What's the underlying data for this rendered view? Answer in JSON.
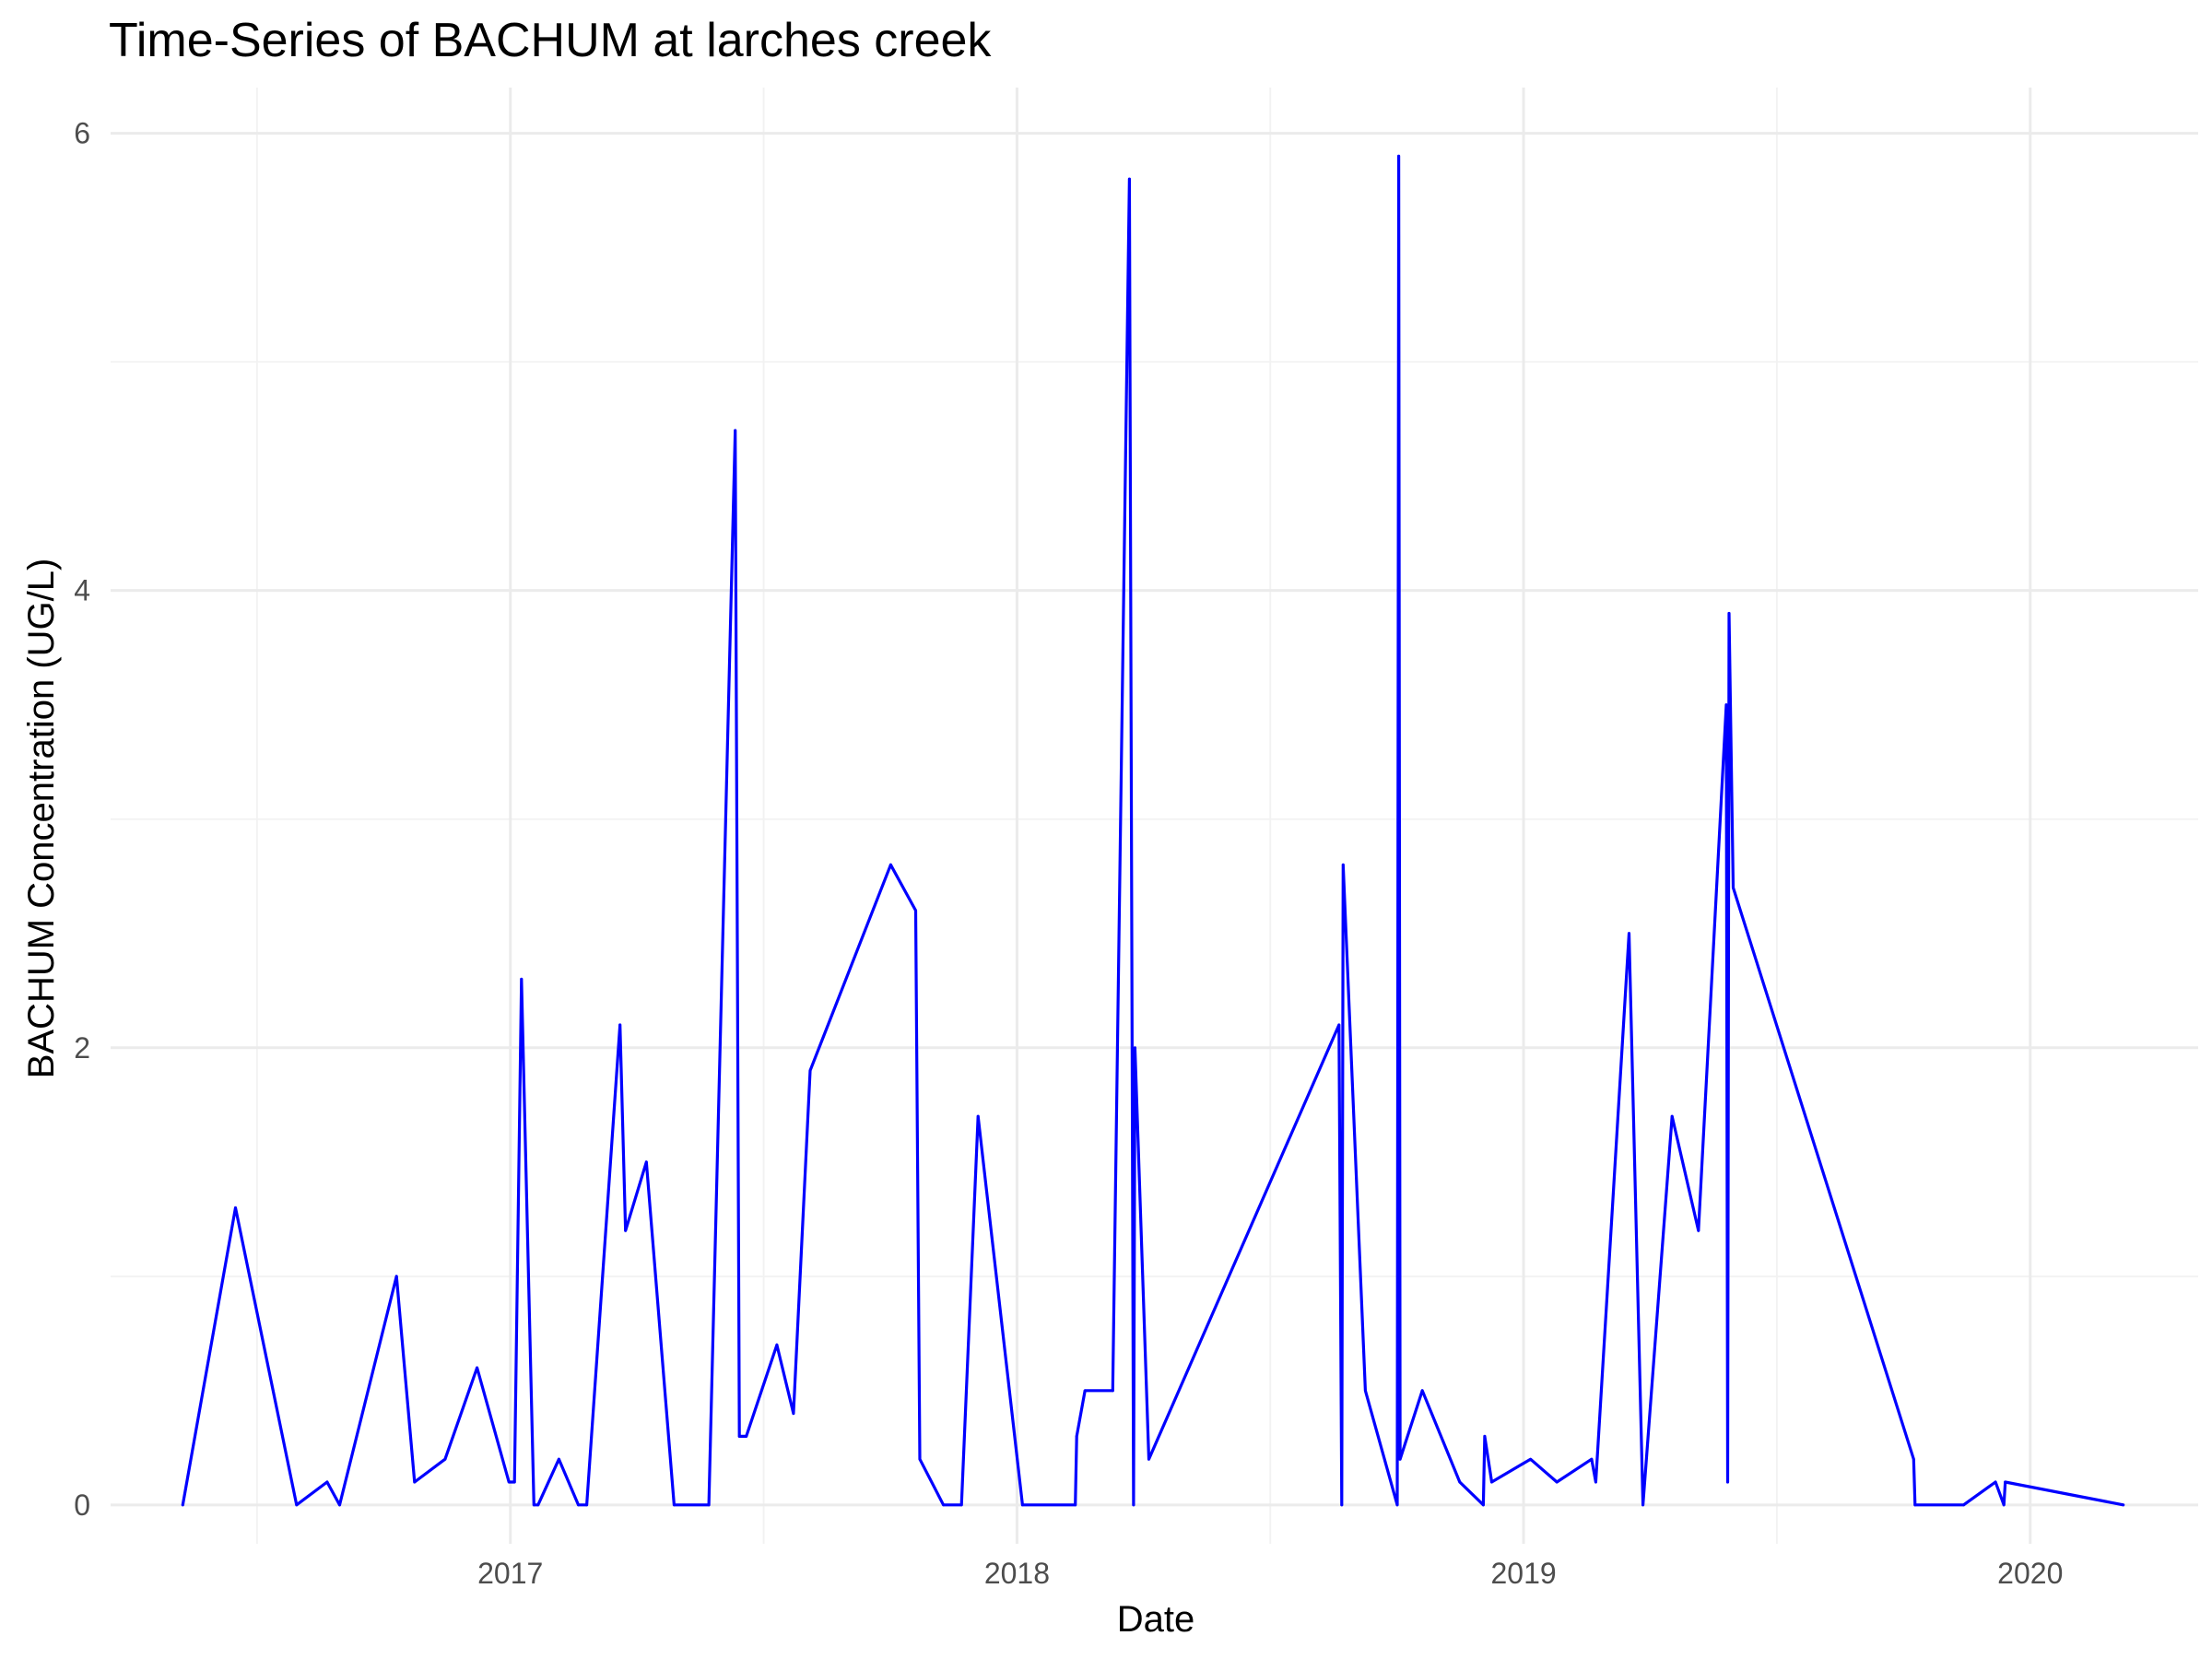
{
  "chart_data": {
    "type": "line",
    "title": "Time-Series of BACHUM at larches creek",
    "xlabel": "Date",
    "ylabel": "BACHUM Concentration (UG/L)",
    "xlim": [
      "2016-03-19",
      "2020-05-01"
    ],
    "ylim": [
      -0.17,
      6.2
    ],
    "x_ticks": [
      "2017-01-01",
      "2018-01-01",
      "2019-01-01",
      "2020-01-01"
    ],
    "x_tick_labels": [
      "2017",
      "2018",
      "2019",
      "2020"
    ],
    "y_ticks": [
      0,
      2,
      4,
      6
    ],
    "y_tick_labels": [
      "0",
      "2",
      "4",
      "6"
    ],
    "grid": true,
    "legend": "none",
    "line_color": "#0000ff",
    "series": [
      {
        "x": [
          "2016-05-10",
          "2016-06-17",
          "2016-07-31",
          "2016-08-22",
          "2016-08-31",
          "2016-10-11",
          "2016-10-24",
          "2016-11-15",
          "2016-12-08",
          "2016-12-31",
          "2017-01-04",
          "2017-01-09",
          "2017-01-18",
          "2017-01-21",
          "2017-02-05",
          "2017-02-19",
          "2017-02-25",
          "2017-03-21",
          "2017-03-25",
          "2017-04-09",
          "2017-04-29",
          "2017-05-24",
          "2017-06-12",
          "2017-06-15",
          "2017-06-20",
          "2017-07-12",
          "2017-07-24",
          "2017-08-05",
          "2017-10-02",
          "2017-10-20",
          "2017-10-23",
          "2017-11-09",
          "2017-11-22",
          "2017-12-04",
          "2018-01-05",
          "2018-02-12",
          "2018-02-13",
          "2018-02-19",
          "2018-03-11",
          "2018-03-23",
          "2018-03-26",
          "2018-03-27",
          "2018-04-06",
          "2018-08-21",
          "2018-08-23",
          "2018-08-24",
          "2018-09-09",
          "2018-10-02",
          "2018-10-03",
          "2018-10-04",
          "2018-10-20",
          "2018-11-16",
          "2018-12-03",
          "2018-12-04",
          "2018-12-09",
          "2019-01-06",
          "2019-01-25",
          "2019-02-19",
          "2019-02-22",
          "2019-03-18",
          "2019-03-28",
          "2019-04-18",
          "2019-05-07",
          "2019-05-27",
          "2019-05-28",
          "2019-05-29",
          "2019-06-01",
          "2019-10-09",
          "2019-10-10",
          "2019-11-14",
          "2019-12-07",
          "2019-12-13",
          "2019-12-14",
          "2020-03-08"
        ],
        "values": [
          0,
          1.3,
          0,
          0.1,
          0,
          1.0,
          0.1,
          0.2,
          0.6,
          0.1,
          0.1,
          2.3,
          0,
          0,
          0.2,
          0,
          0,
          2.1,
          1.2,
          1.5,
          0,
          0,
          4.7,
          0.3,
          0.3,
          0.7,
          0.4,
          1.9,
          2.8,
          2.6,
          0.2,
          0,
          0,
          1.7,
          0,
          0,
          0.3,
          0.5,
          0.5,
          5.8,
          0,
          2.0,
          0.2,
          2.1,
          0,
          2.8,
          0.5,
          0,
          5.9,
          0.2,
          0.5,
          0.1,
          0,
          0.3,
          0.1,
          0.2,
          0.1,
          0.2,
          0.1,
          2.5,
          0,
          1.7,
          1.2,
          3.5,
          0.1,
          3.9,
          2.7,
          0.2,
          0,
          0,
          0.1,
          0,
          0.1,
          0
        ]
      }
    ]
  }
}
